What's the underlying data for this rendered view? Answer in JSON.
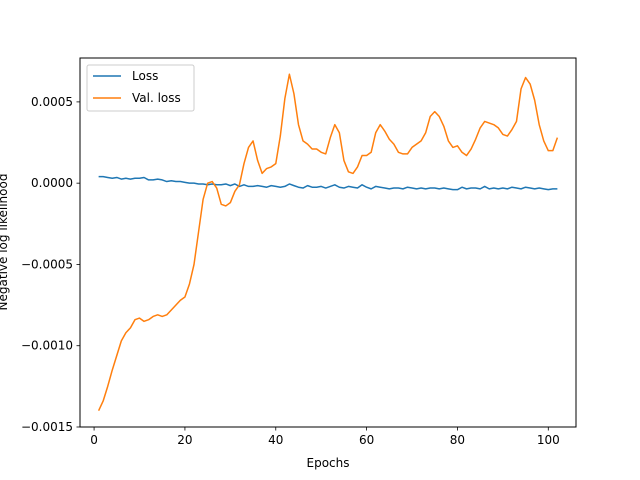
{
  "chart_data": {
    "type": "line",
    "title": "",
    "xlabel": "Epochs",
    "ylabel": "Negative log likelihood",
    "xlim": [
      -3.1,
      106.1
    ],
    "ylim": [
      -0.0015,
      0.00077
    ],
    "xticks": [
      0,
      20,
      40,
      60,
      80,
      100
    ],
    "xtick_labels": [
      "0",
      "20",
      "40",
      "60",
      "80",
      "100"
    ],
    "yticks": [
      -0.0015,
      -0.001,
      -0.0005,
      0.0,
      0.0005
    ],
    "ytick_labels": [
      "−0.0015",
      "−0.0010",
      "−0.0005",
      "0.0000",
      "0.0005"
    ],
    "grid": false,
    "legend_position": "upper-left",
    "x": [
      1,
      2,
      3,
      4,
      5,
      6,
      7,
      8,
      9,
      10,
      11,
      12,
      13,
      14,
      15,
      16,
      17,
      18,
      19,
      20,
      21,
      22,
      23,
      24,
      25,
      26,
      27,
      28,
      29,
      30,
      31,
      32,
      33,
      34,
      35,
      36,
      37,
      38,
      39,
      40,
      41,
      42,
      43,
      44,
      45,
      46,
      47,
      48,
      49,
      50,
      51,
      52,
      53,
      54,
      55,
      56,
      57,
      58,
      59,
      60,
      61,
      62,
      63,
      64,
      65,
      66,
      67,
      68,
      69,
      70,
      71,
      72,
      73,
      74,
      75,
      76,
      77,
      78,
      79,
      80,
      81,
      82,
      83,
      84,
      85,
      86,
      87,
      88,
      89,
      90,
      91,
      92,
      93,
      94,
      95,
      96,
      97,
      98,
      99,
      100,
      101,
      102
    ],
    "series": [
      {
        "name": "Loss",
        "color": "#1f77b4",
        "values": [
          4e-05,
          4e-05,
          3.5e-05,
          3e-05,
          3.5e-05,
          2.5e-05,
          3e-05,
          2.5e-05,
          3e-05,
          3e-05,
          3.5e-05,
          2e-05,
          2e-05,
          2.5e-05,
          2e-05,
          1e-05,
          1.5e-05,
          1e-05,
          1e-05,
          5e-06,
          0.0,
          0.0,
          -5e-06,
          -5e-06,
          -1e-05,
          -5e-06,
          -1e-05,
          -1e-05,
          -5e-06,
          -1.5e-05,
          -5e-06,
          -2e-05,
          -1e-05,
          -2e-05,
          -2e-05,
          -1.5e-05,
          -2e-05,
          -2.5e-05,
          -1.5e-05,
          -2e-05,
          -2.5e-05,
          -2e-05,
          -5e-06,
          -1.5e-05,
          -2.5e-05,
          -3e-05,
          -1.5e-05,
          -2.5e-05,
          -2.5e-05,
          -2e-05,
          -3e-05,
          -2e-05,
          -1e-05,
          -2.5e-05,
          -3e-05,
          -2e-05,
          -2.5e-05,
          -3e-05,
          -1e-05,
          -2.5e-05,
          -3.5e-05,
          -2e-05,
          -2.5e-05,
          -3e-05,
          -3.5e-05,
          -3e-05,
          -3e-05,
          -3.5e-05,
          -2.5e-05,
          -3e-05,
          -3.5e-05,
          -3e-05,
          -3.5e-05,
          -3e-05,
          -3e-05,
          -3.5e-05,
          -3e-05,
          -3.5e-05,
          -4e-05,
          -4e-05,
          -2.5e-05,
          -3.5e-05,
          -3e-05,
          -3e-05,
          -3.5e-05,
          -2e-05,
          -3.5e-05,
          -3e-05,
          -3.5e-05,
          -3e-05,
          -3.5e-05,
          -2.5e-05,
          -3e-05,
          -3.5e-05,
          -2.5e-05,
          -3e-05,
          -3.5e-05,
          -3e-05,
          -3.5e-05,
          -4e-05,
          -3.5e-05,
          -3.5e-05
        ]
      },
      {
        "name": "Val. loss",
        "color": "#ff7f0e",
        "values": [
          -0.0014,
          -0.00134,
          -0.00125,
          -0.00115,
          -0.00106,
          -0.00097,
          -0.00092,
          -0.00089,
          -0.00084,
          -0.00083,
          -0.00085,
          -0.00084,
          -0.00082,
          -0.00081,
          -0.00082,
          -0.00081,
          -0.00078,
          -0.00075,
          -0.00072,
          -0.0007,
          -0.00062,
          -0.0005,
          -0.0003,
          -0.0001,
          0.0,
          1e-05,
          -3e-05,
          -0.00013,
          -0.00014,
          -0.00012,
          -5e-05,
          -1e-05,
          0.00012,
          0.00022,
          0.00026,
          0.00014,
          6e-05,
          9e-05,
          0.0001,
          0.00012,
          0.00029,
          0.00052,
          0.00067,
          0.00055,
          0.00036,
          0.00026,
          0.00024,
          0.00021,
          0.00021,
          0.00019,
          0.00018,
          0.00028,
          0.00036,
          0.00031,
          0.00014,
          7e-05,
          6e-05,
          0.0001,
          0.00017,
          0.00017,
          0.00019,
          0.00031,
          0.00036,
          0.00032,
          0.00027,
          0.00024,
          0.00019,
          0.00018,
          0.00018,
          0.00022,
          0.00024,
          0.00026,
          0.00031,
          0.00041,
          0.00044,
          0.00041,
          0.00035,
          0.00026,
          0.00022,
          0.00023,
          0.00019,
          0.00017,
          0.00021,
          0.00027,
          0.00034,
          0.00038,
          0.00037,
          0.00036,
          0.00034,
          0.0003,
          0.00029,
          0.00033,
          0.00038,
          0.00058,
          0.00065,
          0.00061,
          0.00051,
          0.00036,
          0.00026,
          0.0002,
          0.0002,
          0.00028
        ]
      }
    ]
  }
}
